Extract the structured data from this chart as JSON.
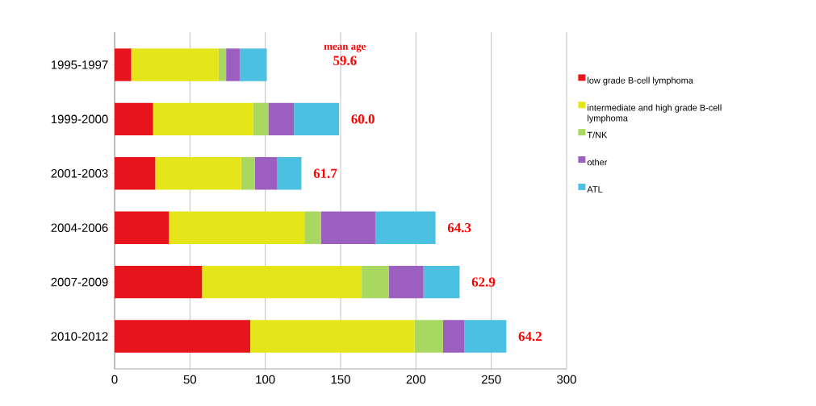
{
  "chart_data": {
    "type": "bar",
    "orientation": "horizontal",
    "stacked": true,
    "categories": [
      "1995-1997",
      "1999-2000",
      "2001-2003",
      "2004-2006",
      "2007-2009",
      "2010-2012"
    ],
    "series": [
      {
        "name": "low grade B-cell lymphoma",
        "color": "#e8141c",
        "values": [
          11,
          25.5,
          27,
          36,
          58,
          90
        ]
      },
      {
        "name": "intermediate and high grade B-cell lymphoma",
        "color": "#e4e61a",
        "values": [
          58,
          66.5,
          57,
          90,
          106,
          109
        ]
      },
      {
        "name": "T/NK",
        "color": "#a8d860",
        "values": [
          5,
          10,
          9,
          11,
          18,
          19
        ]
      },
      {
        "name": "other",
        "color": "#9b5fc0",
        "values": [
          9,
          17,
          15,
          36,
          23,
          14
        ]
      },
      {
        "name": "ATL",
        "color": "#4cc0e0",
        "values": [
          18,
          30,
          16,
          40,
          24,
          28
        ]
      }
    ],
    "xlim": [
      0,
      300
    ],
    "xticks": [
      0,
      50,
      100,
      150,
      200,
      250,
      300
    ],
    "grid": "x",
    "legend": "right",
    "annotations": [
      "mean age",
      "59.6",
      "60.0",
      "61.7",
      "64.3",
      "62.9",
      "64.2"
    ]
  }
}
